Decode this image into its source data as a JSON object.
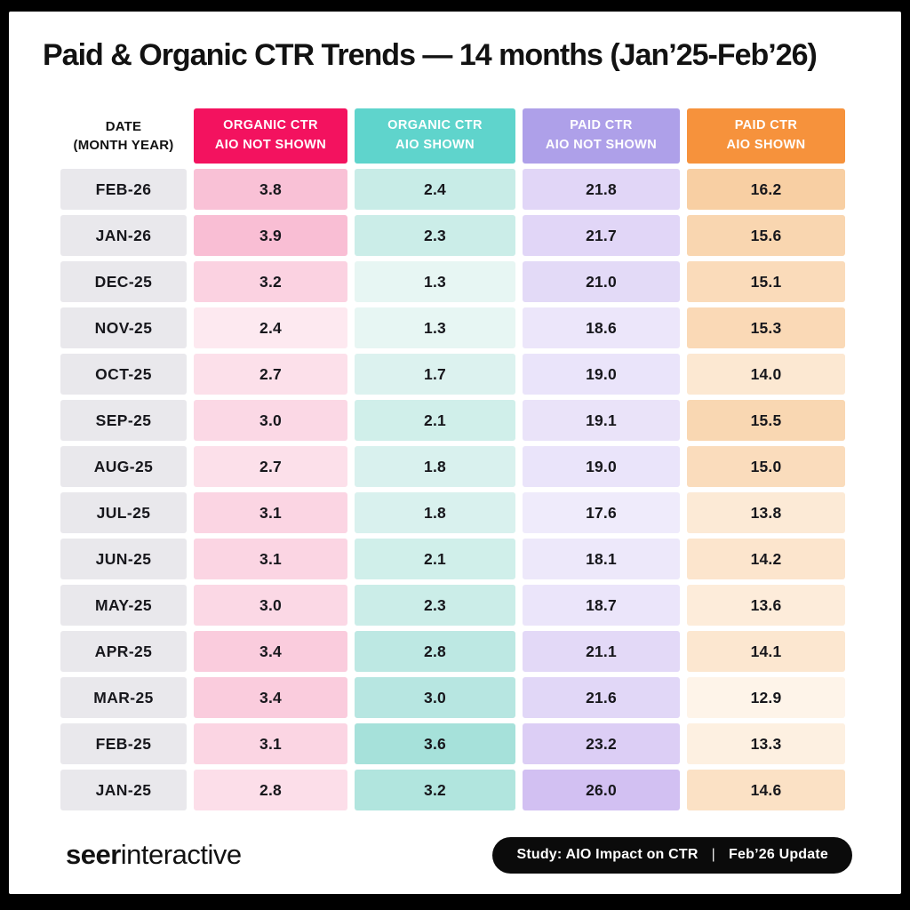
{
  "title": "Paid & Organic CTR Trends — 14 months (Jan’25-Feb’26)",
  "table": {
    "date_header_lines": [
      "DATE",
      "(MONTH YEAR)"
    ],
    "columns": [
      {
        "id": "organic-aio-not-shown",
        "label_line1": "ORGANIC CTR",
        "label_line2": "AIO NOT SHOWN",
        "header_color": "#F3125F",
        "cell_min_color": "#FDE9F0",
        "cell_max_color": "#F9BED4"
      },
      {
        "id": "organic-aio-shown",
        "label_line1": "ORGANIC CTR",
        "label_line2": "AIO SHOWN",
        "header_color": "#5FD4CC",
        "cell_min_color": "#E7F6F3",
        "cell_max_color": "#A6E1DA"
      },
      {
        "id": "paid-aio-not-shown",
        "label_line1": "PAID CTR",
        "label_line2": "AIO NOT SHOWN",
        "header_color": "#AEA0E9",
        "cell_min_color": "#EFEBFB",
        "cell_max_color": "#D2C0F2"
      },
      {
        "id": "paid-aio-shown",
        "label_line1": "PAID CTR",
        "label_line2": "AIO SHOWN",
        "header_color": "#F6923C",
        "cell_min_color": "#FEF4E9",
        "cell_max_color": "#F8CFA3"
      }
    ],
    "rows": [
      {
        "date": "FEB-26",
        "values": [
          "3.8",
          "2.4",
          "21.8",
          "16.2"
        ]
      },
      {
        "date": "JAN-26",
        "values": [
          "3.9",
          "2.3",
          "21.7",
          "15.6"
        ]
      },
      {
        "date": "DEC-25",
        "values": [
          "3.2",
          "1.3",
          "21.0",
          "15.1"
        ]
      },
      {
        "date": "NOV-25",
        "values": [
          "2.4",
          "1.3",
          "18.6",
          "15.3"
        ]
      },
      {
        "date": "OCT-25",
        "values": [
          "2.7",
          "1.7",
          "19.0",
          "14.0"
        ]
      },
      {
        "date": "SEP-25",
        "values": [
          "3.0",
          "2.1",
          "19.1",
          "15.5"
        ]
      },
      {
        "date": "AUG-25",
        "values": [
          "2.7",
          "1.8",
          "19.0",
          "15.0"
        ]
      },
      {
        "date": "JUL-25",
        "values": [
          "3.1",
          "1.8",
          "17.6",
          "13.8"
        ]
      },
      {
        "date": "JUN-25",
        "values": [
          "3.1",
          "2.1",
          "18.1",
          "14.2"
        ]
      },
      {
        "date": "MAY-25",
        "values": [
          "3.0",
          "2.3",
          "18.7",
          "13.6"
        ]
      },
      {
        "date": "APR-25",
        "values": [
          "3.4",
          "2.8",
          "21.1",
          "14.1"
        ]
      },
      {
        "date": "MAR-25",
        "values": [
          "3.4",
          "3.0",
          "21.6",
          "12.9"
        ]
      },
      {
        "date": "FEB-25",
        "values": [
          "3.1",
          "3.6",
          "23.2",
          "13.3"
        ]
      },
      {
        "date": "JAN-25",
        "values": [
          "2.8",
          "3.2",
          "26.0",
          "14.6"
        ]
      }
    ]
  },
  "footer": {
    "logo_bold": "seer",
    "logo_light": "interactive",
    "badge_left": "Study: AIO Impact on CTR",
    "badge_separator": "|",
    "badge_right": "Feb’26 Update"
  },
  "chart_data": {
    "type": "table",
    "title": "Paid & Organic CTR Trends — 14 months (Jan’25-Feb’26)",
    "categories": [
      "FEB-26",
      "JAN-26",
      "DEC-25",
      "NOV-25",
      "OCT-25",
      "SEP-25",
      "AUG-25",
      "JUL-25",
      "JUN-25",
      "MAY-25",
      "APR-25",
      "MAR-25",
      "FEB-25",
      "JAN-25"
    ],
    "series": [
      {
        "name": "ORGANIC CTR AIO NOT SHOWN",
        "values": [
          3.8,
          3.9,
          3.2,
          2.4,
          2.7,
          3.0,
          2.7,
          3.1,
          3.1,
          3.0,
          3.4,
          3.4,
          3.1,
          2.8
        ]
      },
      {
        "name": "ORGANIC CTR AIO SHOWN",
        "values": [
          2.4,
          2.3,
          1.3,
          1.3,
          1.7,
          2.1,
          1.8,
          1.8,
          2.1,
          2.3,
          2.8,
          3.0,
          3.6,
          3.2
        ]
      },
      {
        "name": "PAID CTR AIO NOT SHOWN",
        "values": [
          21.8,
          21.7,
          21.0,
          18.6,
          19.0,
          19.1,
          19.0,
          17.6,
          18.1,
          18.7,
          21.1,
          21.6,
          23.2,
          26.0
        ]
      },
      {
        "name": "PAID CTR AIO SHOWN",
        "values": [
          16.2,
          15.6,
          15.1,
          15.3,
          14.0,
          15.5,
          15.0,
          13.8,
          14.2,
          13.6,
          14.1,
          12.9,
          13.3,
          14.6
        ]
      }
    ],
    "layout_hints": {
      "heatmap_shading": "per-column, darker shade = higher value",
      "row_order": "newest month at top"
    }
  }
}
